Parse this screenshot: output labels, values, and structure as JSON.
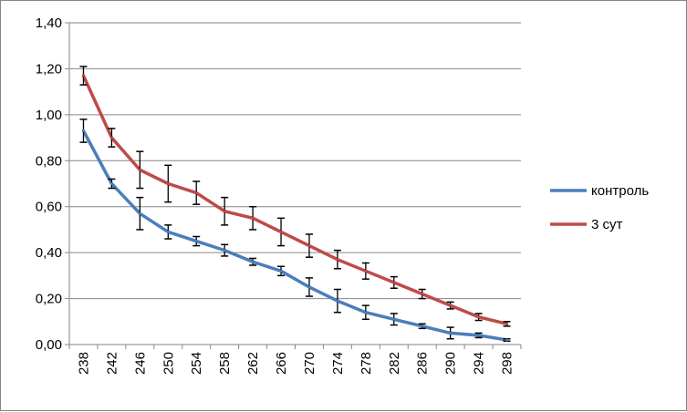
{
  "chart_data": {
    "type": "line",
    "title": "",
    "xlabel": "",
    "ylabel": "",
    "x": [
      "238",
      "242",
      "246",
      "250",
      "254",
      "258",
      "262",
      "266",
      "270",
      "274",
      "278",
      "282",
      "286",
      "290",
      "294",
      "298"
    ],
    "ylim": [
      0,
      1.4
    ],
    "y_ticks": [
      "0,00",
      "0,20",
      "0,40",
      "0,60",
      "0,80",
      "1,00",
      "1,20",
      "1,40"
    ],
    "grid": true,
    "legend_position": "right",
    "series": [
      {
        "name": "контроль",
        "color": "#4a7ebb",
        "values": [
          0.93,
          0.7,
          0.57,
          0.49,
          0.45,
          0.41,
          0.36,
          0.32,
          0.25,
          0.19,
          0.14,
          0.11,
          0.08,
          0.05,
          0.04,
          0.02
        ],
        "errors": [
          0.05,
          0.02,
          0.07,
          0.03,
          0.02,
          0.025,
          0.015,
          0.02,
          0.04,
          0.05,
          0.03,
          0.025,
          0.01,
          0.025,
          0.01,
          0.005
        ]
      },
      {
        "name": "3 сут",
        "color": "#be4b48",
        "values": [
          1.17,
          0.9,
          0.76,
          0.7,
          0.66,
          0.58,
          0.55,
          0.49,
          0.43,
          0.37,
          0.32,
          0.27,
          0.22,
          0.17,
          0.12,
          0.09
        ],
        "errors": [
          0.04,
          0.04,
          0.08,
          0.08,
          0.05,
          0.06,
          0.05,
          0.06,
          0.05,
          0.04,
          0.035,
          0.025,
          0.02,
          0.015,
          0.015,
          0.01
        ]
      }
    ]
  }
}
